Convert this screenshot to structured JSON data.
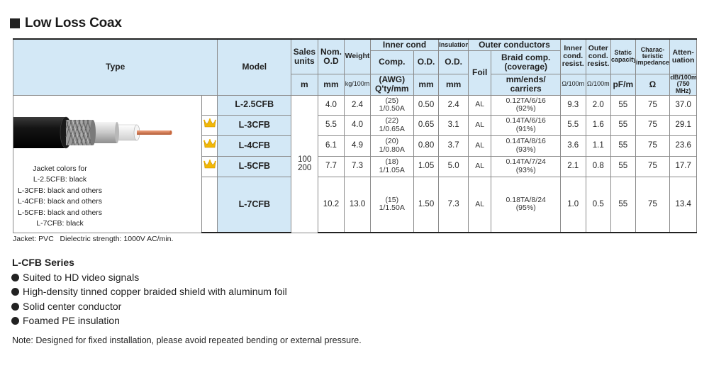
{
  "title": "Low Loss Coax",
  "table": {
    "headers": {
      "type": "Type",
      "model": "Model",
      "sales_units": "Sales units",
      "nom_od": "Nom. O.D",
      "weight": "Weight",
      "inner_cond": "Inner cond",
      "insulation": "Insulation",
      "outer_conductors": "Outer conductors",
      "inner_cond_resist": "Inner cond. resist.",
      "outer_cond_resist": "Outer cond. resist.",
      "static_capacity": "Static capacity",
      "char_impedance": "Charac- teristic impedance",
      "attenuation": "Atten- uation",
      "comp": "Comp.",
      "inner_od": "O.D.",
      "ins_od": "O.D.",
      "foil": "Foil",
      "braid_comp": "Braid comp. (coverage)"
    },
    "units": {
      "sales_units": "m",
      "nom_od": "mm",
      "weight": "kg/100m",
      "comp": "(AWG) Q'ty/mm",
      "inner_od": "mm",
      "ins_od": "mm",
      "braid": "mm/ends/ carriers",
      "inner_resist": "Ω/100m",
      "outer_resist": "Ω/100m",
      "capacity": "pF/m",
      "impedance": "Ω",
      "atten_line1": "dB/100m",
      "atten_line2": "(750 MHz)"
    },
    "sales_units_value": "100 200",
    "rows": [
      {
        "model": "L-2.5CFB",
        "crown": false,
        "nom_od": "4.0",
        "weight": "2.4",
        "comp_awg": "(25)",
        "comp_qty": "1/0.50A",
        "inner_od": "0.50",
        "ins_od": "2.4",
        "foil": "AL",
        "braid": "0.12TA/6/16",
        "coverage": "(92%)",
        "inner_resist": "9.3",
        "outer_resist": "2.0",
        "capacity": "55",
        "impedance": "75",
        "attenuation": "37.0"
      },
      {
        "model": "L-3CFB",
        "crown": true,
        "nom_od": "5.5",
        "weight": "4.0",
        "comp_awg": "(22)",
        "comp_qty": "1/0.65A",
        "inner_od": "0.65",
        "ins_od": "3.1",
        "foil": "AL",
        "braid": "0.14TA/6/16",
        "coverage": "(91%)",
        "inner_resist": "5.5",
        "outer_resist": "1.6",
        "capacity": "55",
        "impedance": "75",
        "attenuation": "29.1"
      },
      {
        "model": "L-4CFB",
        "crown": true,
        "nom_od": "6.1",
        "weight": "4.9",
        "comp_awg": "(20)",
        "comp_qty": "1/0.80A",
        "inner_od": "0.80",
        "ins_od": "3.7",
        "foil": "AL",
        "braid": "0.14TA/8/16",
        "coverage": "(93%)",
        "inner_resist": "3.6",
        "outer_resist": "1.1",
        "capacity": "55",
        "impedance": "75",
        "attenuation": "23.6"
      },
      {
        "model": "L-5CFB",
        "crown": true,
        "nom_od": "7.7",
        "weight": "7.3",
        "comp_awg": "(18)",
        "comp_qty": "1/1.05A",
        "inner_od": "1.05",
        "ins_od": "5.0",
        "foil": "AL",
        "braid": "0.14TA/7/24",
        "coverage": "(93%)",
        "inner_resist": "2.1",
        "outer_resist": "0.8",
        "capacity": "55",
        "impedance": "75",
        "attenuation": "17.7"
      },
      {
        "model": "L-7CFB",
        "crown": false,
        "nom_od": "10.2",
        "weight": "13.0",
        "comp_awg": "(15)",
        "comp_qty": "1/1.50A",
        "inner_od": "1.50",
        "ins_od": "7.3",
        "foil": "AL",
        "braid": "0.18TA/8/24",
        "coverage": "(95%)",
        "inner_resist": "1.0",
        "outer_resist": "0.5",
        "capacity": "55",
        "impedance": "75",
        "attenuation": "13.4"
      }
    ],
    "jacket_note": [
      "Jacket colors for",
      "L-2.5CFB: black",
      "L-3CFB: black and others",
      "L-4CFB: black and others",
      "L-5CFB: black and others",
      "L-7CFB: black"
    ]
  },
  "footnote": "Jacket: PVC   Dielectric strength: 1000V AC/min.",
  "series_title": "L-CFB Series",
  "features": [
    "Suited to HD video signals",
    "High-density tinned copper braided shield with aluminum foil",
    "Solid center conductor",
    "Foamed PE insulation"
  ],
  "note": "Note: Designed for fixed installation, please avoid repeated bending or external pressure.",
  "colors": {
    "header_bg": "#d3e8f6",
    "crown": "#f2b705",
    "copper": "#d2744a"
  },
  "icons": {
    "crown": "crown-icon",
    "bullet": "bullet-dot-icon"
  }
}
